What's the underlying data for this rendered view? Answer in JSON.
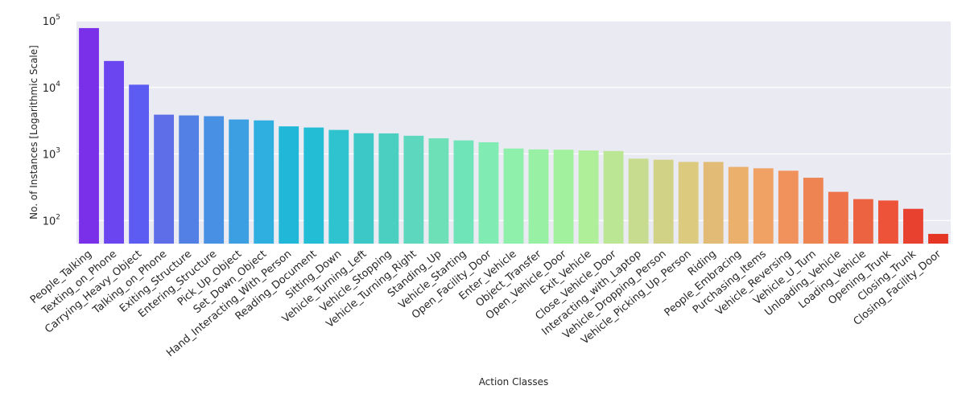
{
  "chart_data": {
    "type": "bar",
    "title": "",
    "xlabel": "Action Classes",
    "ylabel": "No. of Instances [Logarithmic Scale]",
    "yscale": "log",
    "ylim": [
      45,
      100000
    ],
    "y_ticks": [
      {
        "value": 100,
        "base": "10",
        "exp": "2"
      },
      {
        "value": 1000,
        "base": "10",
        "exp": "3"
      },
      {
        "value": 10000,
        "base": "10",
        "exp": "4"
      },
      {
        "value": 100000,
        "base": "10",
        "exp": "5"
      }
    ],
    "grid": true,
    "background_color": "#eaeaf2",
    "grid_color": "#ffffff",
    "categories": [
      "People_Talking",
      "Texting_on_Phone",
      "Carrying_Heavy_Object",
      "Talking_on_Phone",
      "Exiting_Structure",
      "Entering_Structure",
      "Pick_Up_Object",
      "Set_Down_Object",
      "Hand_Interacting_With_Person",
      "Reading_Document",
      "Sitting_Down",
      "Vehicle_Turning_Left",
      "Vehicle_Stopping",
      "Vehicle_Turning_Right",
      "Standing_Up",
      "Vehicle_Starting",
      "Open_Facility_Door",
      "Enter_Vehicle",
      "Object_Transfer",
      "Open_Vehicle_Door",
      "Exit_Vehicle",
      "Close_Vehicle_Door",
      "Interacting_with_Laptop",
      "Vehicle_Dropping_Person",
      "Vehicle_Picking_Up_Person",
      "Riding",
      "People_Embracing",
      "Purchasing_Items",
      "Vehicle_Reversing",
      "Vehicle_U_Turn",
      "Unloading_Vehicle",
      "Loading_Vehicle",
      "Opening_Trunk",
      "Closing_Trunk",
      "Closing_Facility_Door"
    ],
    "values": [
      78000,
      25000,
      11000,
      3900,
      3800,
      3700,
      3300,
      3200,
      2600,
      2500,
      2300,
      2050,
      2040,
      1880,
      1720,
      1600,
      1500,
      1210,
      1170,
      1160,
      1130,
      1110,
      850,
      820,
      760,
      760,
      640,
      610,
      560,
      440,
      270,
      210,
      200,
      150,
      63
    ],
    "colors": [
      "#7a2fe9",
      "#6b45f0",
      "#5c5cf3",
      "#5e6ee9",
      "#5380e5",
      "#4890e4",
      "#3c9fe2",
      "#2faee0",
      "#20b7d8",
      "#23bdd5",
      "#2ec3cf",
      "#3bc8c7",
      "#4bcfc1",
      "#5dd7bd",
      "#6ee0b8",
      "#6fe4b9",
      "#80ebb2",
      "#8ff0ab",
      "#98f0a5",
      "#a2f19f",
      "#b0ef9a",
      "#bbe694",
      "#c7dc8e",
      "#d2d286",
      "#dccb7e",
      "#e2bc76",
      "#ecb06d",
      "#f0a164",
      "#f1915b",
      "#ef8453",
      "#ee724a",
      "#ec6342",
      "#ec5338",
      "#e9412f",
      "#e43525"
    ]
  }
}
